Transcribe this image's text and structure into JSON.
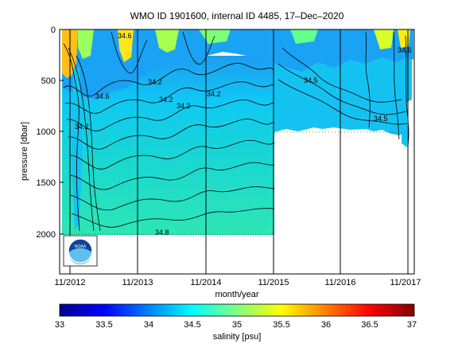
{
  "chart_data": {
    "type": "heatmap",
    "title": "WMO ID 1901600, internal ID 4485, 17–Dec–2020",
    "xlabel": "month/year",
    "ylabel": "pressure [dbar]",
    "x_ticks": [
      "11/2012",
      "11/2013",
      "11/2014",
      "11/2015",
      "11/2016",
      "11/2017"
    ],
    "y_ticks": [
      "0",
      "500",
      "1000",
      "1500",
      "2000"
    ],
    "ylim": [
      2400,
      0
    ],
    "y_reversed": true,
    "colorbar": {
      "label": "salinity [psu]",
      "range": [
        33,
        37
      ],
      "ticks": [
        "33",
        "33.5",
        "34",
        "34.5",
        "35",
        "35.5",
        "36",
        "36.5",
        "37"
      ],
      "colormap": "jet"
    },
    "contour_labels": [
      "34.6",
      "34.2",
      "34.2",
      "34.2",
      "34.2",
      "34.5",
      "34.5",
      "34.6",
      "34.2",
      "34.6",
      "34.8"
    ],
    "observations": {
      "profiles_to_2000_dbar_until": "11/2015",
      "profiles_to_1000_dbar_after": "11/2015"
    },
    "logo": "noaa-logo"
  }
}
